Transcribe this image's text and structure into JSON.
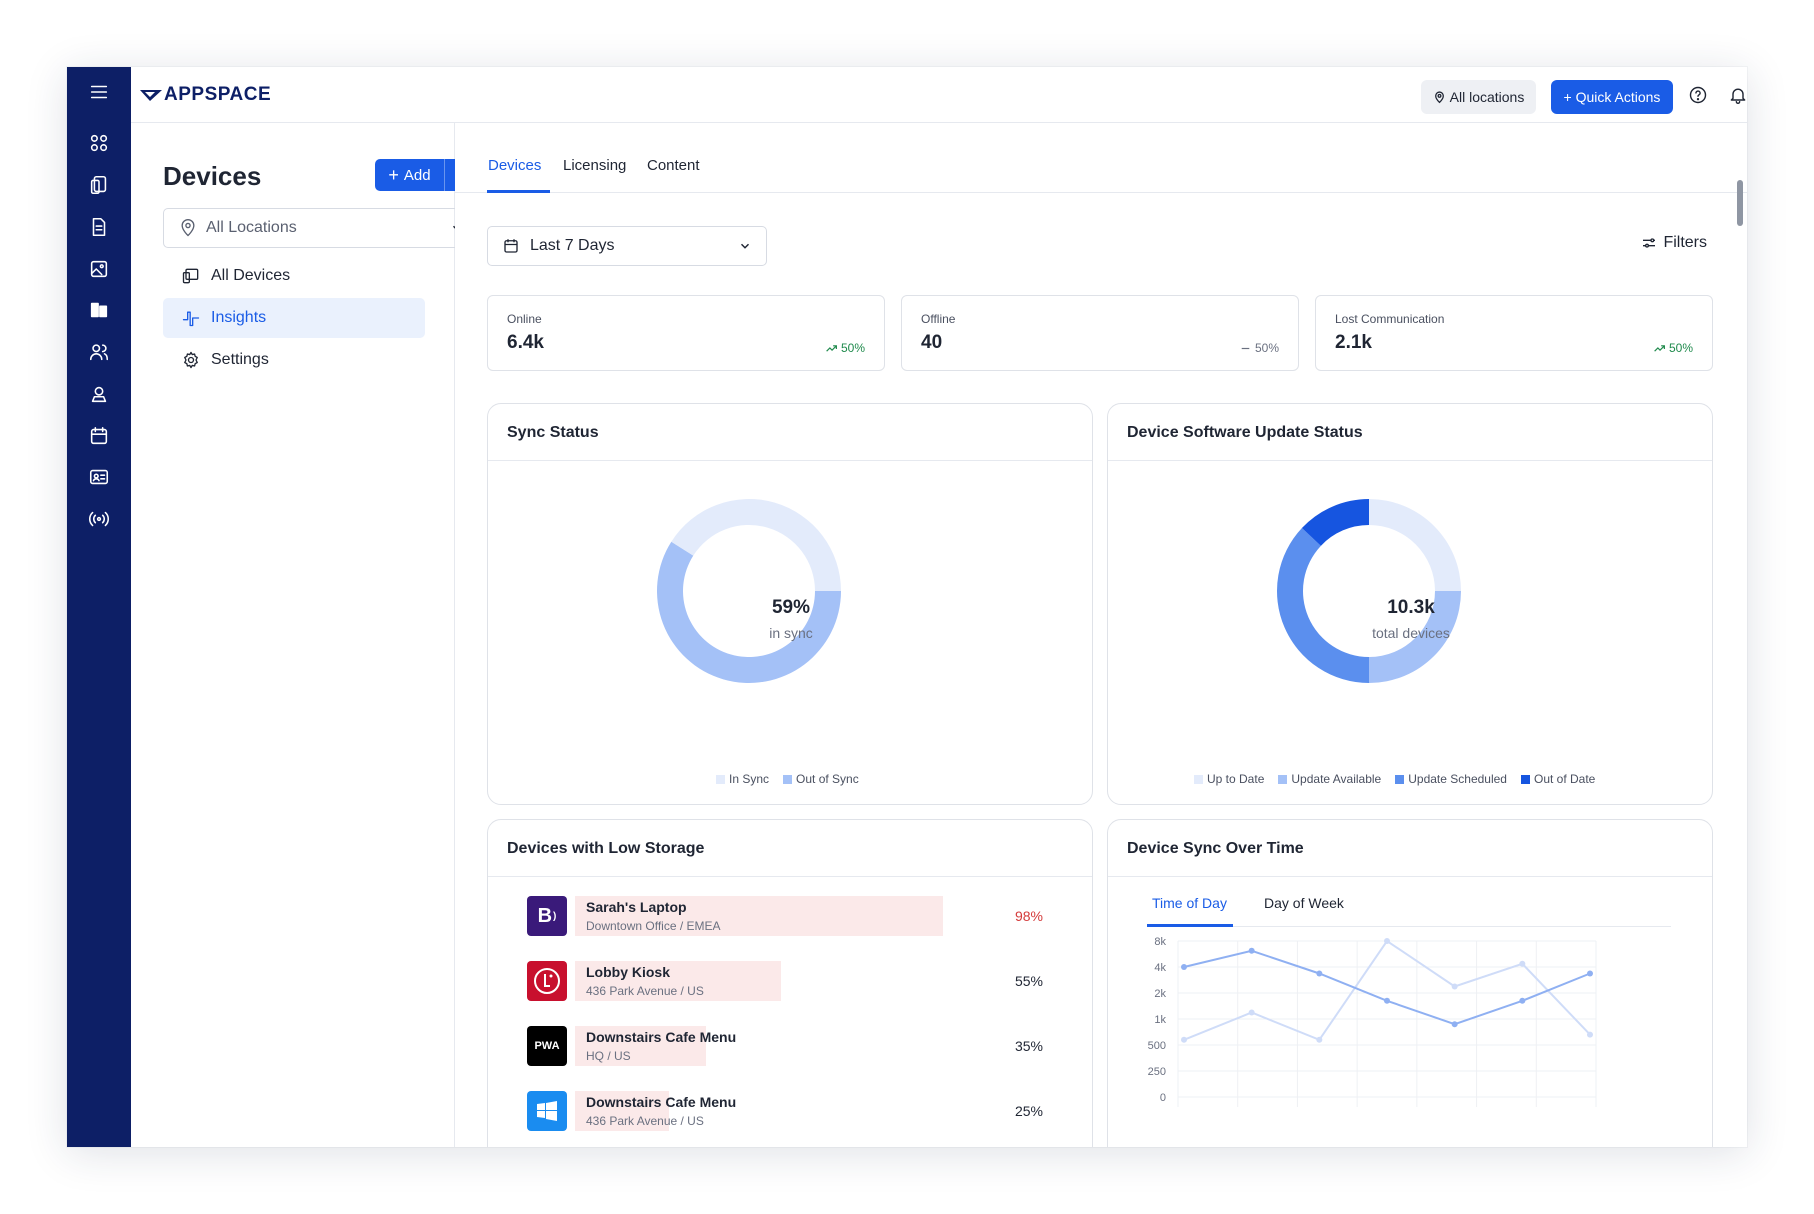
{
  "brand": {
    "name": "APPSPACE"
  },
  "topbar": {
    "locations_label": "All locations",
    "quick_actions_label": "+ Quick Actions"
  },
  "rail": {
    "icons": [
      "menu-icon",
      "dashboard-icon",
      "devices-icon",
      "document-icon",
      "image-icon",
      "insights-icon",
      "users-icon",
      "user-badge-icon",
      "calendar-icon",
      "id-card-icon",
      "broadcast-icon"
    ]
  },
  "sidenav": {
    "title": "Devices",
    "add_label": "Add",
    "location_placeholder": "All Locations",
    "items": [
      {
        "label": "All Devices",
        "icon": "devices-icon",
        "active": false
      },
      {
        "label": "Insights",
        "icon": "pulse-icon",
        "active": true
      },
      {
        "label": "Settings",
        "icon": "gear-icon",
        "active": false
      }
    ]
  },
  "tabs": [
    {
      "label": "Devices",
      "active": true
    },
    {
      "label": "Licensing",
      "active": false
    },
    {
      "label": "Content",
      "active": false
    }
  ],
  "filters": {
    "date_range": "Last 7 Days",
    "filters_label": "Filters"
  },
  "stats": [
    {
      "label": "Online",
      "value": "6.4k",
      "change": "50%",
      "trend": "up",
      "color": "#1f8a4c"
    },
    {
      "label": "Offline",
      "value": "40",
      "change": "50%",
      "trend": "flat",
      "color": "#6a7080"
    },
    {
      "label": "Lost Communication",
      "value": "2.1k",
      "change": "50%",
      "trend": "up",
      "color": "#1f8a4c"
    }
  ],
  "sync_status": {
    "title": "Sync Status",
    "center_value": "59%",
    "center_label": "in sync",
    "legend": [
      "In Sync",
      "Out of Sync"
    ]
  },
  "update_status": {
    "title": "Device Software Update Status",
    "center_value": "10.3k",
    "center_label": "total devices",
    "legend": [
      "Up to Date",
      "Update Available",
      "Update Scheduled",
      "Out of Date"
    ]
  },
  "low_storage": {
    "title": "Devices with Low Storage",
    "rows": [
      {
        "name": "Sarah's Laptop",
        "location": "Downtown Office / EMEA",
        "percent": "98%",
        "value": 98,
        "logo": "B",
        "logo_color": "#3a1a7a",
        "pct_color": "#d43a3a"
      },
      {
        "name": "Lobby Kiosk",
        "location": "436 Park Avenue / US",
        "percent": "55%",
        "value": 55,
        "logo": "LG",
        "logo_color": "#c8102e",
        "pct_color": "#1f2533"
      },
      {
        "name": "Downstairs Cafe Menu",
        "location": "HQ / US",
        "percent": "35%",
        "value": 35,
        "logo": "PWA",
        "logo_color": "#000000",
        "pct_color": "#1f2533"
      },
      {
        "name": "Downstairs Cafe Menu",
        "location": "436 Park Avenue / US",
        "percent": "25%",
        "value": 25,
        "logo": "windows-icon",
        "logo_color": "#1a8cf0",
        "pct_color": "#1f2533"
      }
    ]
  },
  "sync_over_time": {
    "title": "Device Sync Over Time",
    "subtabs": [
      {
        "label": "Time of Day",
        "active": true
      },
      {
        "label": "Day of Week",
        "active": false
      }
    ]
  },
  "chart_data": [
    {
      "type": "pie",
      "title": "Sync Status",
      "categories": [
        "In Sync",
        "Out of Sync"
      ],
      "values": [
        59,
        41
      ],
      "colors": [
        "#a4c1f7",
        "#e3ebfb"
      ]
    },
    {
      "type": "pie",
      "title": "Device Software Update Status",
      "categories": [
        "Up to Date",
        "Update Available",
        "Update Scheduled",
        "Out of Date"
      ],
      "values": [
        25,
        25,
        37,
        13
      ],
      "colors": [
        "#e3ebfb",
        "#a4c1f7",
        "#5b8fee",
        "#1655e0"
      ]
    },
    {
      "type": "line",
      "title": "Device Sync Over Time",
      "y_ticks": [
        "8k",
        "4k",
        "2k",
        "1k",
        "500",
        "250",
        "0"
      ],
      "series": [
        {
          "values": [
            4000,
            6500,
            3500,
            1700,
            900,
            1700,
            3500
          ],
          "color": "#8fb0f2"
        },
        {
          "values": [
            600,
            1250,
            600,
            8000,
            2500,
            4500,
            700
          ],
          "color": "#cfdcf8"
        }
      ]
    }
  ]
}
